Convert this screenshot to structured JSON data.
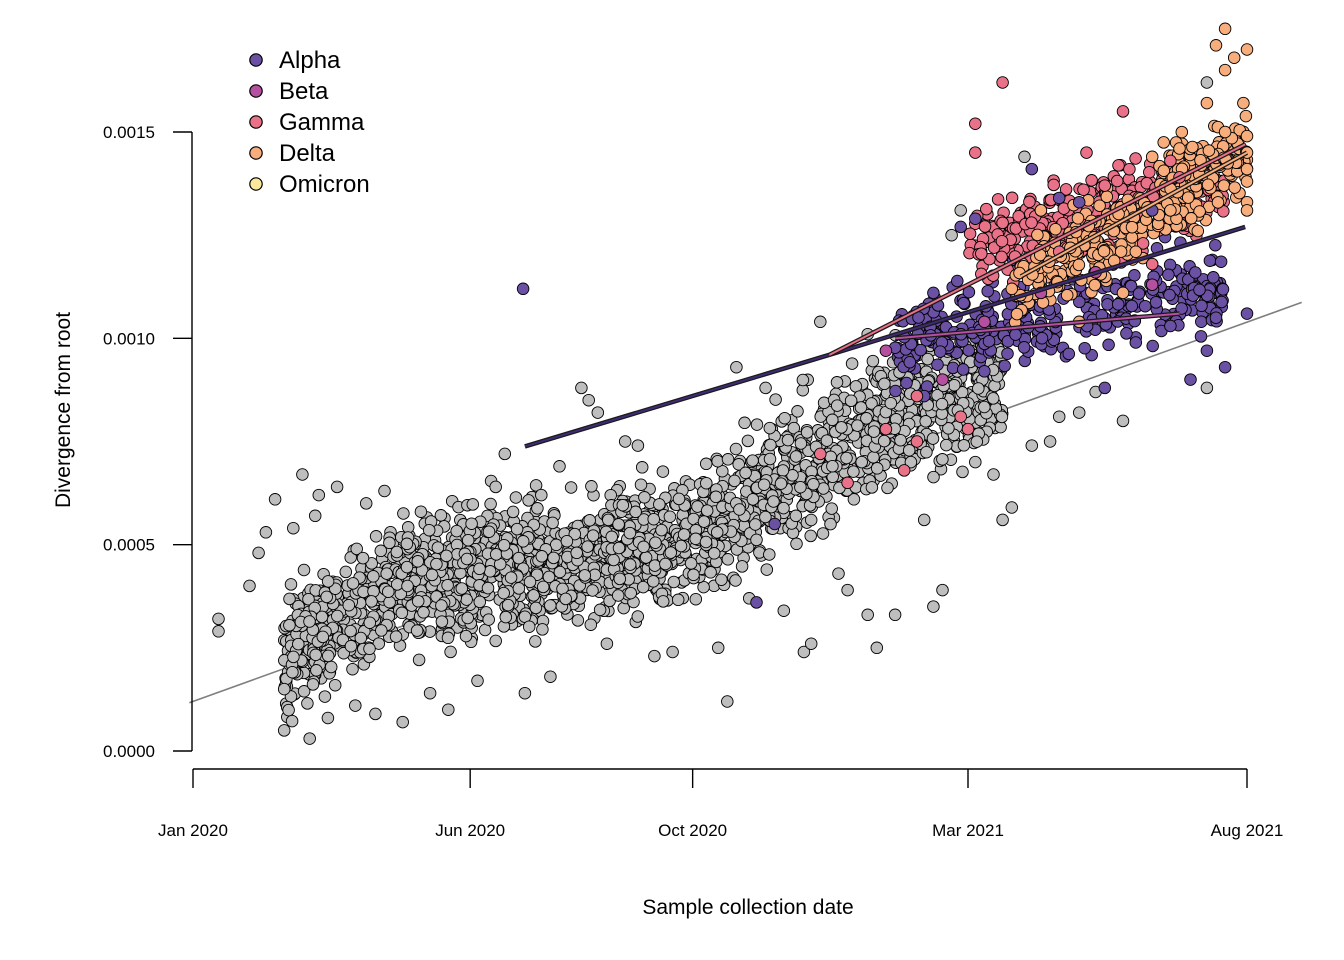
{
  "chart_data": {
    "type": "scatter",
    "title": "",
    "xlabel": "Sample collection date",
    "ylabel": "Divergence from root",
    "x_axis": {
      "type": "date",
      "range": [
        "2020-01-01",
        "2021-08-01"
      ],
      "ticks": [
        {
          "value": "2020-01-01",
          "label": "Jan 2020"
        },
        {
          "value": "2020-06-01",
          "label": "Jun 2020"
        },
        {
          "value": "2020-10-01",
          "label": "Oct 2020"
        },
        {
          "value": "2021-03-01",
          "label": "Mar 2021"
        },
        {
          "value": "2021-08-01",
          "label": "Aug 2021"
        }
      ]
    },
    "y_axis": {
      "range": [
        0,
        0.0015
      ],
      "ticks": [
        {
          "value": 0,
          "label": "0.0000"
        },
        {
          "value": 0.0005,
          "label": "0.0005"
        },
        {
          "value": 0.001,
          "label": "0.0010"
        },
        {
          "value": 0.0015,
          "label": "0.0015"
        }
      ]
    },
    "grid": false,
    "legend": {
      "position": "top-left",
      "entries": [
        {
          "label": "Alpha",
          "color": "#6a51a3"
        },
        {
          "label": "Beta",
          "color": "#b4509f"
        },
        {
          "label": "Gamma",
          "color": "#e97289"
        },
        {
          "label": "Delta",
          "color": "#f8ad7c"
        },
        {
          "label": "Omicron",
          "color": "#fbe89c"
        }
      ]
    },
    "colors": {
      "background_points": "#bebebe",
      "point_outline": "#000000",
      "overall_trend": "#7f7f7f",
      "clade_line_outline": "#1a1a1a"
    },
    "series": [
      {
        "group": "background",
        "color": "#bebebe",
        "points": [
          [
            "2020-01-15",
            0.00032
          ],
          [
            "2020-01-15",
            0.00029
          ],
          [
            "2020-02-01",
            0.0004
          ],
          [
            "2020-02-06",
            0.00048
          ],
          [
            "2020-02-10",
            0.00053
          ],
          [
            "2020-02-15",
            0.00061
          ],
          [
            "2020-02-20",
            0.00015
          ],
          [
            "2020-02-20",
            5e-05
          ],
          [
            "2020-02-25",
            0.00054
          ],
          [
            "2020-03-01",
            0.00067
          ],
          [
            "2020-03-05",
            3e-05
          ],
          [
            "2020-03-08",
            0.00057
          ],
          [
            "2020-03-10",
            0.00062
          ],
          [
            "2020-03-15",
            8e-05
          ],
          [
            "2020-03-20",
            0.00064
          ],
          [
            "2020-03-30",
            0.00011
          ],
          [
            "2020-04-05",
            0.0006
          ],
          [
            "2020-04-10",
            9e-05
          ],
          [
            "2020-04-15",
            0.00063
          ],
          [
            "2020-04-25",
            7e-05
          ],
          [
            "2020-05-05",
            0.00058
          ],
          [
            "2020-05-10",
            0.00014
          ],
          [
            "2020-05-20",
            0.0001
          ],
          [
            "2020-06-05",
            0.00017
          ],
          [
            "2020-06-15",
            0.00064
          ],
          [
            "2020-06-20",
            0.00072
          ],
          [
            "2020-07-01",
            0.00014
          ],
          [
            "2020-07-10",
            0.00062
          ],
          [
            "2020-07-15",
            0.00018
          ],
          [
            "2020-07-20",
            0.00069
          ],
          [
            "2020-08-01",
            0.00088
          ],
          [
            "2020-08-05",
            0.00085
          ],
          [
            "2020-08-10",
            0.00082
          ],
          [
            "2020-08-15",
            0.00026
          ],
          [
            "2020-08-25",
            0.00075
          ],
          [
            "2020-09-01",
            0.00074
          ],
          [
            "2020-09-10",
            0.00023
          ],
          [
            "2020-09-20",
            0.00024
          ],
          [
            "2020-10-15",
            0.00025
          ],
          [
            "2020-10-20",
            0.00012
          ],
          [
            "2020-10-25",
            0.00093
          ],
          [
            "2020-11-01",
            0.00037
          ],
          [
            "2020-11-10",
            0.00088
          ],
          [
            "2020-11-20",
            0.00034
          ],
          [
            "2020-12-01",
            0.00024
          ],
          [
            "2020-12-05",
            0.00026
          ],
          [
            "2020-12-10",
            0.00104
          ],
          [
            "2020-12-20",
            0.00043
          ],
          [
            "2020-12-25",
            0.00039
          ],
          [
            "2021-01-05",
            0.00101
          ],
          [
            "2021-01-05",
            0.00033
          ],
          [
            "2021-01-10",
            0.00025
          ],
          [
            "2021-01-20",
            0.00033
          ],
          [
            "2021-02-05",
            0.00056
          ],
          [
            "2021-02-10",
            0.00035
          ],
          [
            "2021-02-15",
            0.00039
          ],
          [
            "2021-02-20",
            0.00125
          ],
          [
            "2021-02-25",
            0.00131
          ],
          [
            "2021-03-05",
            0.0007
          ],
          [
            "2021-03-15",
            0.00067
          ],
          [
            "2021-03-20",
            0.00056
          ],
          [
            "2021-03-25",
            0.00059
          ],
          [
            "2021-04-01",
            0.00144
          ],
          [
            "2021-04-05",
            0.00074
          ],
          [
            "2021-04-15",
            0.00075
          ],
          [
            "2021-04-20",
            0.00081
          ],
          [
            "2021-05-01",
            0.00082
          ],
          [
            "2021-05-10",
            0.00087
          ],
          [
            "2021-05-25",
            0.0008
          ],
          [
            "2021-06-10",
            0.00126
          ],
          [
            "2021-06-15",
            0.00127
          ],
          [
            "2021-06-20",
            0.00133
          ],
          [
            "2021-06-25",
            0.00134
          ],
          [
            "2021-07-10",
            0.00088
          ],
          [
            "2021-07-10",
            0.00162
          ],
          [
            "2021-07-15",
            0.00111
          ]
        ]
      },
      {
        "group": "Alpha",
        "color": "#6a51a3",
        "points": [
          [
            "2020-06-30",
            0.00112
          ],
          [
            "2020-11-15",
            0.00055
          ],
          [
            "2020-11-05",
            0.00036
          ],
          [
            "2021-02-10",
            0.00111
          ],
          [
            "2021-02-05",
            0.00086
          ],
          [
            "2021-02-25",
            0.00127
          ],
          [
            "2021-03-05",
            0.00129
          ],
          [
            "2021-03-10",
            0.00092
          ],
          [
            "2021-04-05",
            0.00141
          ],
          [
            "2021-04-20",
            0.00134
          ],
          [
            "2021-05-01",
            0.00133
          ],
          [
            "2021-05-15",
            0.00088
          ],
          [
            "2021-06-01",
            0.00099
          ],
          [
            "2021-06-10",
            0.00131
          ],
          [
            "2021-06-20",
            0.00103
          ],
          [
            "2021-07-01",
            0.0009
          ],
          [
            "2021-07-10",
            0.00097
          ],
          [
            "2021-07-15",
            0.00105
          ],
          [
            "2021-07-20",
            0.00093
          ],
          [
            "2021-08-01",
            0.00106
          ]
        ]
      },
      {
        "group": "Beta",
        "color": "#b4509f",
        "points": [
          [
            "2021-01-15",
            0.00097
          ],
          [
            "2021-02-15",
            0.0009
          ],
          [
            "2021-03-10",
            0.00104
          ],
          [
            "2021-04-10",
            0.00111
          ],
          [
            "2021-05-10",
            0.00116
          ],
          [
            "2021-06-10",
            0.00113
          ]
        ]
      },
      {
        "group": "Gamma",
        "color": "#e97289",
        "points": [
          [
            "2020-12-10",
            0.00072
          ],
          [
            "2020-12-25",
            0.00065
          ],
          [
            "2021-01-15",
            0.00078
          ],
          [
            "2021-01-25",
            0.00068
          ],
          [
            "2021-02-01",
            0.00075
          ],
          [
            "2021-02-01",
            0.00086
          ],
          [
            "2021-02-25",
            0.00081
          ],
          [
            "2021-03-01",
            0.00078
          ],
          [
            "2021-03-20",
            0.00162
          ],
          [
            "2021-03-05",
            0.00152
          ],
          [
            "2021-03-05",
            0.00145
          ],
          [
            "2021-03-20",
            0.00128
          ],
          [
            "2021-04-10",
            0.00131
          ],
          [
            "2021-04-20",
            0.00121
          ],
          [
            "2021-05-05",
            0.00145
          ],
          [
            "2021-05-15",
            0.00137
          ],
          [
            "2021-05-25",
            0.00155
          ],
          [
            "2021-06-05",
            0.00123
          ],
          [
            "2021-06-10",
            0.00118
          ],
          [
            "2021-06-20",
            0.00143
          ],
          [
            "2021-06-25",
            0.00139
          ]
        ]
      },
      {
        "group": "Delta",
        "color": "#f8ad7c",
        "points": [
          [
            "2021-03-25",
            0.00112
          ],
          [
            "2021-04-10",
            0.00131
          ],
          [
            "2021-05-01",
            0.00104
          ],
          [
            "2021-05-25",
            0.00111
          ],
          [
            "2021-06-01",
            0.00121
          ],
          [
            "2021-06-10",
            0.00144
          ],
          [
            "2021-06-20",
            0.00131
          ],
          [
            "2021-06-25",
            0.00146
          ],
          [
            "2021-07-05",
            0.00126
          ],
          [
            "2021-07-10",
            0.00157
          ],
          [
            "2021-07-15",
            0.00171
          ],
          [
            "2021-07-20",
            0.0015
          ],
          [
            "2021-07-20",
            0.00165
          ],
          [
            "2021-07-20",
            0.00175
          ],
          [
            "2021-07-25",
            0.00168
          ],
          [
            "2021-07-30",
            0.00157
          ],
          [
            "2021-08-01",
            0.00145
          ],
          [
            "2021-08-01",
            0.00138
          ],
          [
            "2021-08-01",
            0.00133
          ],
          [
            "2021-08-01",
            0.00131
          ],
          [
            "2021-08-01",
            0.00141
          ],
          [
            "2021-08-01",
            0.0017
          ],
          [
            "2021-08-01",
            0.00149
          ]
        ]
      }
    ],
    "trend_lines": [
      {
        "group": "overall",
        "color": "#7f7f7f",
        "x": [
          "2019-12-30",
          "2021-08-31"
        ],
        "y": [
          0.000117,
          0.001087
        ]
      },
      {
        "group": "Alpha",
        "color": "#3f2a73",
        "x": [
          "2020-07-01",
          "2020-12-15"
        ],
        "y": [
          0.000738,
          0.00096
        ]
      },
      {
        "group": "Alpha",
        "color": "#3f2a73",
        "x": [
          "2020-12-15",
          "2021-07-31"
        ],
        "y": [
          0.00096,
          0.00127
        ]
      },
      {
        "group": "Beta",
        "color": "#b4509f",
        "x": [
          "2021-01-20",
          "2021-06-25"
        ],
        "y": [
          0.001,
          0.00106
        ]
      },
      {
        "group": "Gamma",
        "color": "#e97289",
        "x": [
          "2020-12-15",
          "2021-07-31"
        ],
        "y": [
          0.00096,
          0.00147
        ]
      },
      {
        "group": "Delta",
        "color": "#f8ad7c",
        "x": [
          "2021-03-30",
          "2021-08-01"
        ],
        "y": [
          0.00115,
          0.00145
        ]
      }
    ]
  }
}
